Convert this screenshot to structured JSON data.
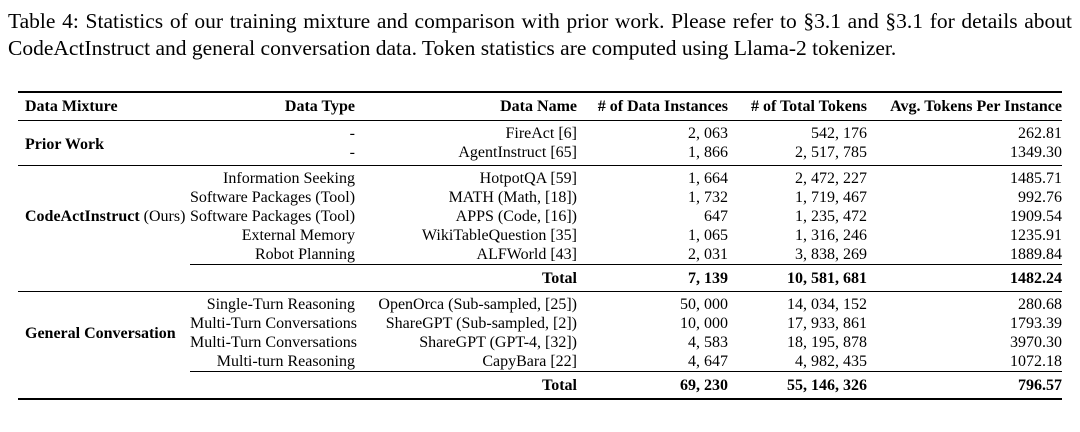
{
  "caption": "Table 4: Statistics of our training mixture and comparison with prior work. Please refer to §3.1 and §3.1 for details about CodeActInstruct and general conversation data. Token statistics are computed using Llama-2 tokenizer.",
  "table": {
    "columns": [
      "Data Mixture",
      "Data Type",
      "Data Name",
      "# of Data Instances",
      "# of Total Tokens",
      "Avg. Tokens Per Instance"
    ],
    "sections": [
      {
        "mixture": "Prior Work",
        "mixture_suffix": "",
        "rows": [
          {
            "data_type": "-",
            "data_name": "FireAct [6]",
            "instances": "2, 063",
            "tokens": "542, 176",
            "avg": "262.81"
          },
          {
            "data_type": "-",
            "data_name": "AgentInstruct [65]",
            "instances": "1, 866",
            "tokens": "2, 517, 785",
            "avg": "1349.30"
          }
        ],
        "total": null
      },
      {
        "mixture": "CodeActInstruct",
        "mixture_suffix": " (Ours)",
        "rows": [
          {
            "data_type": "Information Seeking",
            "data_name": "HotpotQA [59]",
            "instances": "1, 664",
            "tokens": "2, 472, 227",
            "avg": "1485.71"
          },
          {
            "data_type": "Software Packages (Tool)",
            "data_name": "MATH (Math, [18])",
            "instances": "1, 732",
            "tokens": "1, 719, 467",
            "avg": "992.76"
          },
          {
            "data_type": "Software Packages (Tool)",
            "data_name": "APPS (Code, [16])",
            "instances": "647",
            "tokens": "1, 235, 472",
            "avg": "1909.54"
          },
          {
            "data_type": "External Memory",
            "data_name": "WikiTableQuestion [35]",
            "instances": "1, 065",
            "tokens": "1, 316, 246",
            "avg": "1235.91"
          },
          {
            "data_type": "Robot Planning",
            "data_name": "ALFWorld [43]",
            "instances": "2, 031",
            "tokens": "3, 838, 269",
            "avg": "1889.84"
          }
        ],
        "total": {
          "label": "Total",
          "instances": "7, 139",
          "tokens": "10, 581, 681",
          "avg": "1482.24"
        }
      },
      {
        "mixture": "General Conversation",
        "mixture_suffix": "",
        "rows": [
          {
            "data_type": "Single-Turn Reasoning",
            "data_name": "OpenOrca (Sub-sampled, [25])",
            "instances": "50, 000",
            "tokens": "14, 034, 152",
            "avg": "280.68"
          },
          {
            "data_type": "Multi-Turn Conversations",
            "data_name": "ShareGPT (Sub-sampled, [2])",
            "instances": "10, 000",
            "tokens": "17, 933, 861",
            "avg": "1793.39"
          },
          {
            "data_type": "Multi-Turn Conversations",
            "data_name": "ShareGPT (GPT-4, [32])",
            "instances": "4, 583",
            "tokens": "18, 195, 878",
            "avg": "3970.30"
          },
          {
            "data_type": "Multi-turn Reasoning",
            "data_name": "CapyBara [22]",
            "instances": "4, 647",
            "tokens": "4, 982, 435",
            "avg": "1072.18"
          }
        ],
        "total": {
          "label": "Total",
          "instances": "69, 230",
          "tokens": "55, 146, 326",
          "avg": "796.57"
        }
      }
    ]
  }
}
